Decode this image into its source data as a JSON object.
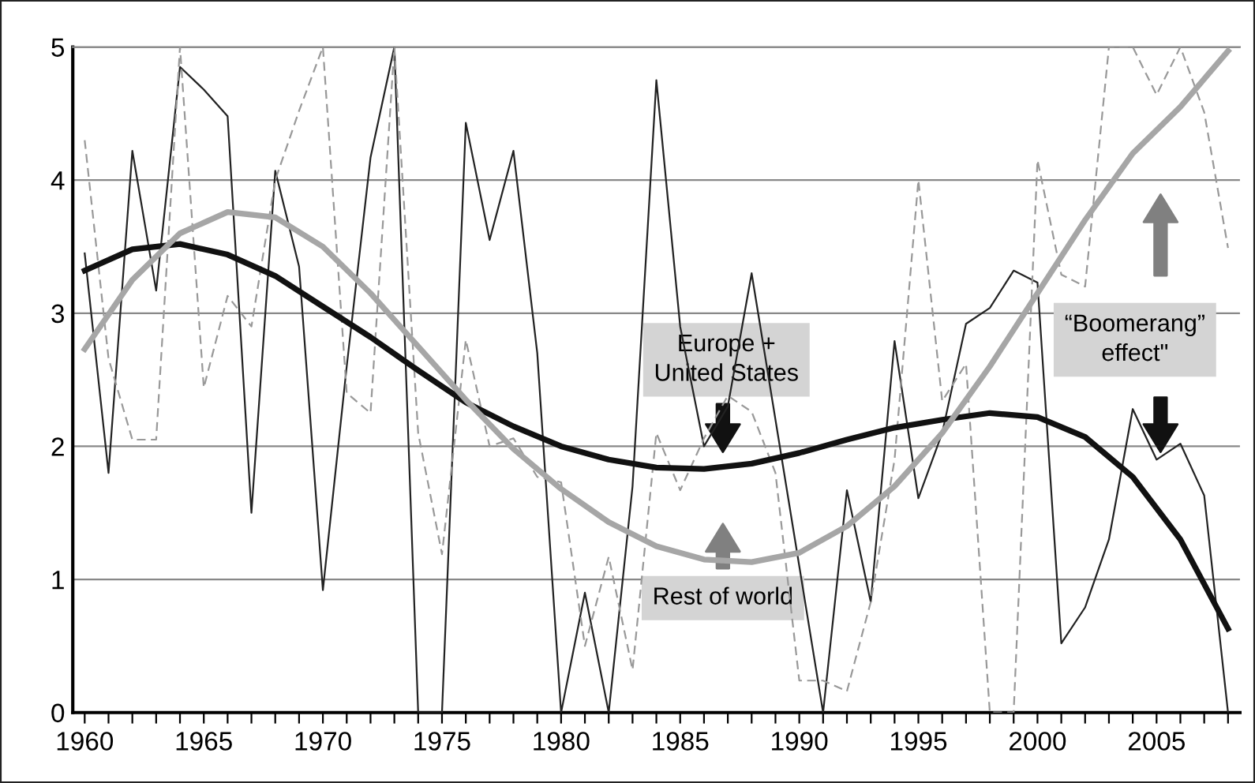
{
  "chart_data": {
    "type": "line",
    "x": [
      1960,
      1961,
      1962,
      1963,
      1964,
      1965,
      1966,
      1967,
      1968,
      1969,
      1970,
      1971,
      1972,
      1973,
      1974,
      1975,
      1976,
      1977,
      1978,
      1979,
      1980,
      1981,
      1982,
      1983,
      1984,
      1985,
      1986,
      1987,
      1988,
      1989,
      1990,
      1991,
      1992,
      1993,
      1994,
      1995,
      1996,
      1997,
      1998,
      1999,
      2000,
      2001,
      2002,
      2003,
      2004,
      2005,
      2006,
      2007,
      2008
    ],
    "series": [
      {
        "color": "#222222",
        "line_style": "solid",
        "values": [
          3.45,
          1.8,
          4.22,
          3.17,
          4.85,
          4.68,
          4.48,
          1.5,
          4.07,
          3.35,
          0.92,
          2.6,
          4.17,
          5,
          0,
          0,
          4.43,
          3.55,
          4.22,
          2.7,
          0,
          0.9,
          0,
          1.7,
          4.75,
          2.9,
          2.0,
          2.3,
          3.3,
          2.2,
          1.1,
          0,
          1.67,
          0.83,
          2.79,
          1.61,
          2.1,
          2.92,
          3.04,
          3.32,
          3.23,
          0.52,
          0.79,
          1.3,
          2.28,
          1.9,
          2.02,
          1.63,
          0
        ]
      },
      {
        "color": "#999999",
        "line_style": "dashed",
        "values": [
          4.3,
          2.66,
          2.05,
          2.05,
          5,
          2.44,
          3.13,
          2.9,
          4.0,
          4.52,
          5,
          2.4,
          2.25,
          5,
          2.1,
          1.19,
          2.8,
          2.0,
          2.06,
          1.77,
          1.73,
          0.5,
          1.17,
          0.32,
          2.1,
          1.67,
          2.06,
          2.38,
          2.26,
          1.8,
          0.24,
          0.24,
          0.16,
          0.83,
          1.9,
          4.0,
          2.34,
          2.62,
          0,
          0,
          4.15,
          3.29,
          3.2,
          5,
          5,
          4.64,
          5,
          4.51,
          3.49
        ]
      },
      {
        "color": "#111111",
        "line_style": "solid",
        "x": [
          1960,
          1962,
          1964,
          1966,
          1968,
          1970,
          1972,
          1974,
          1976,
          1978,
          1980,
          1982,
          1984,
          1986,
          1988,
          1990,
          1992,
          1994,
          1996,
          1998,
          2000,
          2002,
          2004,
          2006,
          2008
        ],
        "values": [
          3.32,
          3.48,
          3.52,
          3.44,
          3.28,
          3.05,
          2.82,
          2.57,
          2.33,
          2.15,
          2.0,
          1.9,
          1.84,
          1.83,
          1.87,
          1.95,
          2.05,
          2.14,
          2.2,
          2.25,
          2.22,
          2.07,
          1.77,
          1.3,
          0.63
        ]
      },
      {
        "color": "#a6a6a6",
        "line_style": "solid",
        "x": [
          1960,
          1962,
          1964,
          1966,
          1968,
          1970,
          1972,
          1974,
          1976,
          1978,
          1980,
          1982,
          1984,
          1986,
          1988,
          1990,
          1992,
          1994,
          1996,
          1998,
          2000,
          2002,
          2004,
          2006,
          2008
        ],
        "values": [
          2.73,
          3.25,
          3.6,
          3.76,
          3.72,
          3.5,
          3.15,
          2.75,
          2.35,
          1.98,
          1.68,
          1.43,
          1.25,
          1.15,
          1.13,
          1.2,
          1.4,
          1.7,
          2.1,
          2.6,
          3.15,
          3.7,
          4.2,
          4.55,
          4.97
        ]
      }
    ],
    "xlim": [
      1959.5,
      2008.5
    ],
    "xticks": [
      1960,
      {
        "value": 1961,
        "label": null
      },
      {
        "value": 1962,
        "label": null
      },
      {
        "value": 1963,
        "label": null
      },
      {
        "value": 1964,
        "label": null
      },
      1965,
      {
        "value": 1966,
        "label": null
      },
      {
        "value": 1967,
        "label": null
      },
      {
        "value": 1968,
        "label": null
      },
      {
        "value": 1969,
        "label": null
      },
      1970,
      {
        "value": 1971,
        "label": null
      },
      {
        "value": 1972,
        "label": null
      },
      {
        "value": 1973,
        "label": null
      },
      {
        "value": 1974,
        "label": null
      },
      1975,
      {
        "value": 1976,
        "label": null
      },
      {
        "value": 1977,
        "label": null
      },
      {
        "value": 1978,
        "label": null
      },
      {
        "value": 1979,
        "label": null
      },
      1980,
      {
        "value": 1981,
        "label": null
      },
      {
        "value": 1982,
        "label": null
      },
      {
        "value": 1983,
        "label": null
      },
      {
        "value": 1984,
        "label": null
      },
      1985,
      {
        "value": 1986,
        "label": null
      },
      {
        "value": 1987,
        "label": null
      },
      {
        "value": 1988,
        "label": null
      },
      {
        "value": 1989,
        "label": null
      },
      1990,
      {
        "value": 1991,
        "label": null
      },
      {
        "value": 1992,
        "label": null
      },
      {
        "value": 1993,
        "label": null
      },
      {
        "value": 1994,
        "label": null
      },
      1995,
      {
        "value": 1996,
        "label": null
      },
      {
        "value": 1997,
        "label": null
      },
      {
        "value": 1998,
        "label": null
      },
      {
        "value": 1999,
        "label": null
      },
      2000,
      {
        "value": 2001,
        "label": null
      },
      {
        "value": 2002,
        "label": null
      },
      {
        "value": 2003,
        "label": null
      },
      {
        "value": 2004,
        "label": null
      },
      2005,
      {
        "value": 2006,
        "label": null
      },
      {
        "value": 2007,
        "label": null
      },
      {
        "value": 2008,
        "label": null
      }
    ],
    "ylim": [
      0,
      5
    ],
    "yticks": [
      0,
      1,
      2,
      3,
      4,
      5
    ],
    "grid": "y",
    "legend": false,
    "marker": "none",
    "annotations": [
      "Europe +\nUnited States",
      "Rest of world",
      "“Boomerang”\neffect\""
    ]
  }
}
